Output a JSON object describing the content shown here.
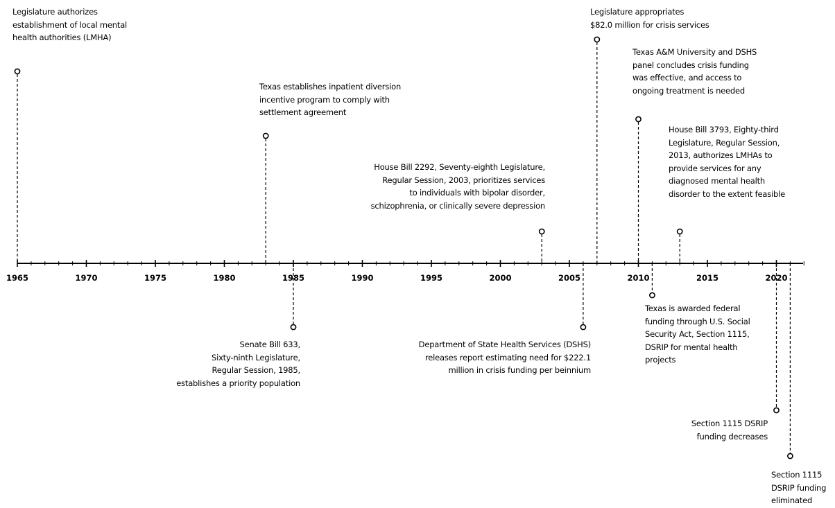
{
  "axis": {
    "start": 1965,
    "end": 2022,
    "major_ticks": [
      1965,
      1970,
      1975,
      1980,
      1985,
      1990,
      1995,
      2000,
      2005,
      2010,
      2015,
      2020
    ]
  },
  "events": [
    {
      "id": "lmha-authorized",
      "year": 1965,
      "side": "above",
      "text": "Legislature authorizes\nestablishment of local mental\nhealth authorities (LMHA)"
    },
    {
      "id": "inpatient-diversion",
      "year": 1983,
      "side": "above",
      "text": "Texas establishes inpatient diversion\nincentive program to comply with\nsettlement agreement"
    },
    {
      "id": "senate-bill-633",
      "year": 1985,
      "side": "below",
      "text": "Senate Bill 633,\nSixty-ninth Legislature,\nRegular Session, 1985,\nestablishes a priority population"
    },
    {
      "id": "house-bill-2292",
      "year": 2003,
      "side": "above",
      "text": "House Bill 2292, Seventy-eighth Legislature,\nRegular Session, 2003, prioritizes services\nto individuals with bipolar disorder,\nschizophrenia, or clinically severe depression"
    },
    {
      "id": "dshs-report",
      "year": 2006,
      "side": "below",
      "text": "Department of State Health Services (DSHS)\nreleases report estimating need for $222.1\nmillion in crisis funding per beinnium"
    },
    {
      "id": "crisis-appropriation",
      "year": 2007,
      "side": "above",
      "text": "Legislature appropriates\n$82.0 million for crisis services"
    },
    {
      "id": "tamu-panel",
      "year": 2010,
      "side": "above",
      "text": "Texas A&M University and DSHS\npanel concludes crisis funding\nwas effective, and access to\nongoing treatment is needed"
    },
    {
      "id": "federal-funding",
      "year": 2011,
      "side": "below",
      "text": "Texas is awarded federal\nfunding through U.S. Social\nSecurity Act, Section 1115,\nDSRIP for mental health\nprojects"
    },
    {
      "id": "house-bill-3793",
      "year": 2013,
      "side": "above",
      "text": "House Bill 3793, Eighty-third\nLegislature, Regular Session,\n2013, authorizes LMHAs to\nprovide services for any\ndiagnosed mental health\ndisorder to the extent feasible"
    },
    {
      "id": "dsrip-decreases",
      "year": 2020,
      "side": "below",
      "text": "Section 1115 DSRIP\nfunding decreases"
    },
    {
      "id": "dsrip-eliminated",
      "year": 2021,
      "side": "below",
      "text": "Section 1115\nDSRIP funding\neliminated"
    }
  ],
  "colors": {
    "line": "#000000",
    "text": "#000000",
    "background": "#ffffff"
  }
}
